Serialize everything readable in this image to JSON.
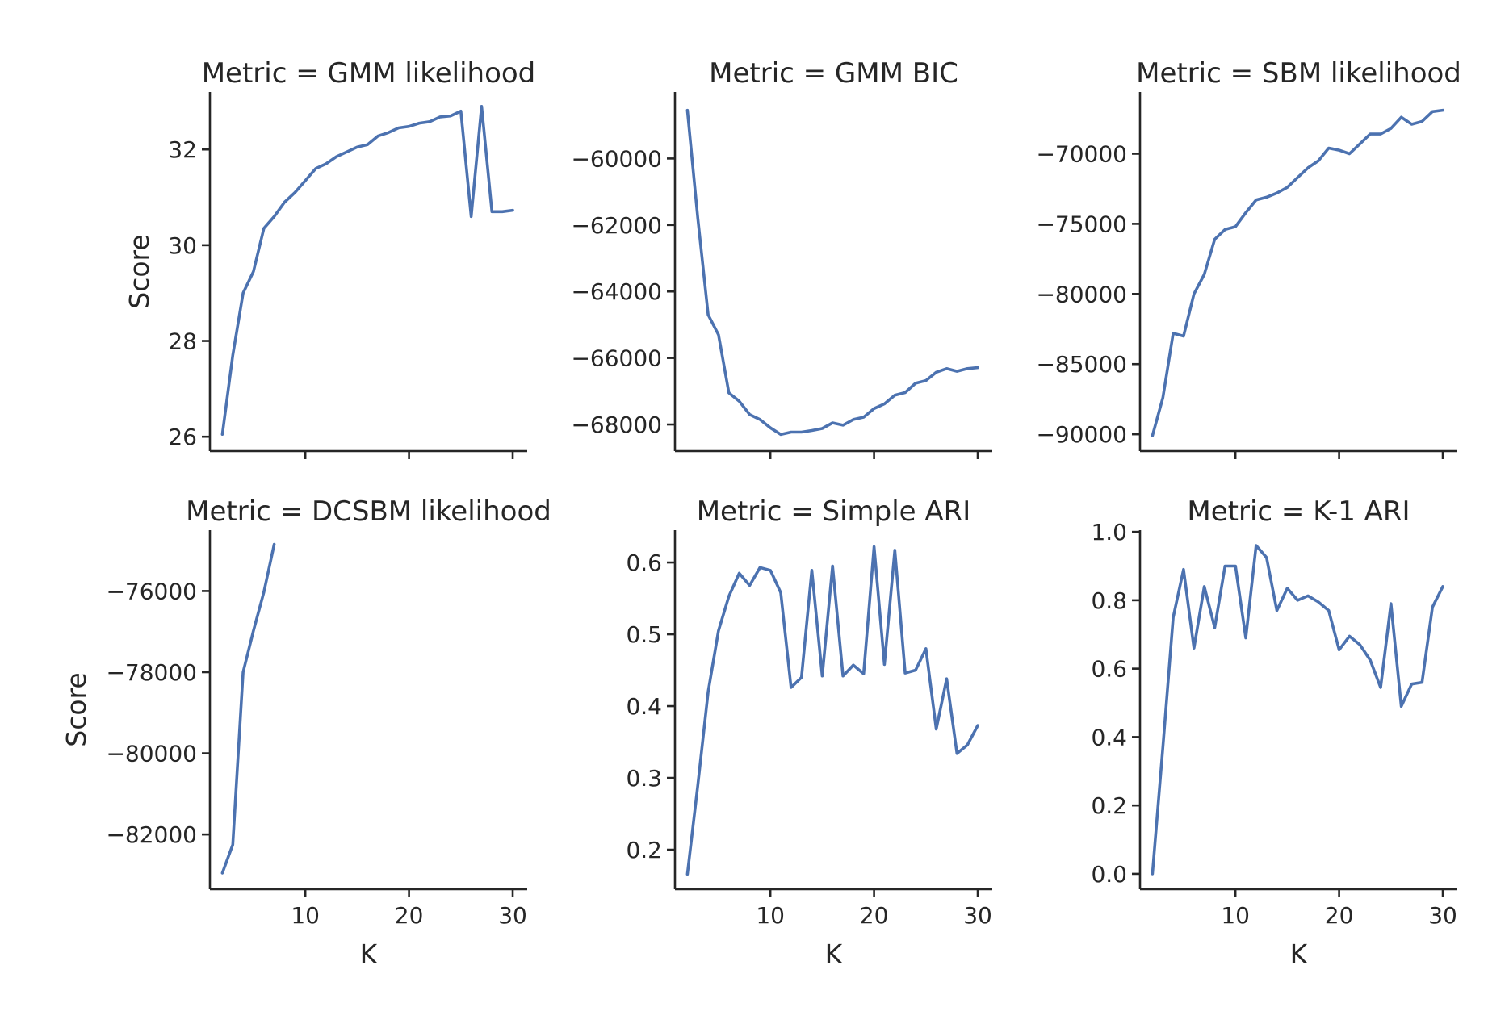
{
  "figure": {
    "line_color": "#4c72b0",
    "axis_color": "#262626"
  },
  "chart_data": [
    {
      "type": "line",
      "title": "Metric = GMM likelihood",
      "xlabel": "",
      "ylabel": "Score",
      "xlim": [
        0.8,
        31.4
      ],
      "ylim": [
        25.7,
        33.2
      ],
      "xticks": [
        10,
        20,
        30
      ],
      "xtick_labels": [],
      "yticks": [
        26,
        28,
        30,
        32
      ],
      "ytick_labels": [
        "26",
        "28",
        "30",
        "32"
      ],
      "grid": false,
      "x": [
        2,
        3,
        4,
        5,
        6,
        7,
        8,
        9,
        10,
        11,
        12,
        13,
        14,
        15,
        16,
        17,
        18,
        19,
        20,
        21,
        22,
        23,
        24,
        25,
        26,
        27,
        28,
        29,
        30
      ],
      "y": [
        26.05,
        27.7,
        29.0,
        29.45,
        30.35,
        30.6,
        30.9,
        31.1,
        31.35,
        31.6,
        31.7,
        31.85,
        31.95,
        32.05,
        32.1,
        32.28,
        32.35,
        32.45,
        32.48,
        32.55,
        32.58,
        32.68,
        32.7,
        32.8,
        30.6,
        32.9,
        30.7,
        30.7,
        30.73
      ]
    },
    {
      "type": "line",
      "title": "Metric = GMM BIC",
      "xlabel": "",
      "ylabel": "",
      "xlim": [
        0.8,
        31.4
      ],
      "ylim": [
        -68800,
        -58000
      ],
      "xticks": [
        10,
        20,
        30
      ],
      "xtick_labels": [],
      "yticks": [
        -68000,
        -66000,
        -64000,
        -62000,
        -60000
      ],
      "ytick_labels": [
        "−68000",
        "−66000",
        "−64000",
        "−62000",
        "−60000"
      ],
      "grid": false,
      "x": [
        2,
        3,
        4,
        5,
        6,
        7,
        8,
        9,
        10,
        11,
        12,
        13,
        14,
        15,
        16,
        17,
        18,
        19,
        20,
        21,
        22,
        23,
        24,
        25,
        26,
        27,
        28,
        29,
        30
      ],
      "y": [
        -58550,
        -61800,
        -64700,
        -65300,
        -67050,
        -67300,
        -67700,
        -67850,
        -68100,
        -68300,
        -68230,
        -68230,
        -68180,
        -68120,
        -67950,
        -68020,
        -67850,
        -67780,
        -67520,
        -67380,
        -67120,
        -67040,
        -66760,
        -66680,
        -66430,
        -66320,
        -66400,
        -66320,
        -66290
      ]
    },
    {
      "type": "line",
      "title": "Metric = SBM likelihood",
      "xlabel": "",
      "ylabel": "",
      "xlim": [
        0.8,
        31.4
      ],
      "ylim": [
        -91200,
        -65600
      ],
      "xticks": [
        10,
        20,
        30
      ],
      "xtick_labels": [],
      "yticks": [
        -90000,
        -85000,
        -80000,
        -75000,
        -70000
      ],
      "ytick_labels": [
        "−90000",
        "−85000",
        "−80000",
        "−75000",
        "−70000"
      ],
      "grid": false,
      "x": [
        2,
        3,
        4,
        5,
        6,
        7,
        8,
        9,
        10,
        11,
        12,
        13,
        14,
        15,
        16,
        17,
        18,
        19,
        20,
        21,
        22,
        23,
        24,
        25,
        26,
        27,
        28,
        29,
        30
      ],
      "y": [
        -90100,
        -87400,
        -82800,
        -83000,
        -80000,
        -78600,
        -76100,
        -75400,
        -75200,
        -74200,
        -73300,
        -73100,
        -72800,
        -72400,
        -71700,
        -71000,
        -70500,
        -69600,
        -69750,
        -70000,
        -69300,
        -68600,
        -68600,
        -68200,
        -67400,
        -67900,
        -67700,
        -67000,
        -66900
      ]
    },
    {
      "type": "line",
      "title": "Metric = DCSBM likelihood",
      "xlabel": "K",
      "ylabel": "Score",
      "xlim": [
        0.8,
        31.4
      ],
      "ylim": [
        -83350,
        -74500
      ],
      "xticks": [
        10,
        20,
        30
      ],
      "xtick_labels": [
        "10",
        "20",
        "30"
      ],
      "yticks": [
        -82000,
        -80000,
        -78000,
        -76000
      ],
      "ytick_labels": [
        "−82000",
        "−80000",
        "−78000",
        "−76000"
      ],
      "grid": false,
      "x": [
        2,
        3,
        4,
        5,
        6,
        7
      ],
      "y": [
        -82950,
        -82250,
        -78000,
        -76980,
        -76030,
        -74850
      ]
    },
    {
      "type": "line",
      "title": "Metric = Simple ARI",
      "xlabel": "K",
      "ylabel": "",
      "xlim": [
        0.8,
        31.4
      ],
      "ylim": [
        0.145,
        0.645
      ],
      "xticks": [
        10,
        20,
        30
      ],
      "xtick_labels": [
        "10",
        "20",
        "30"
      ],
      "yticks": [
        0.2,
        0.3,
        0.4,
        0.5,
        0.6
      ],
      "ytick_labels": [
        "0.2",
        "0.3",
        "0.4",
        "0.5",
        "0.6"
      ],
      "grid": false,
      "x": [
        2,
        3,
        4,
        5,
        6,
        7,
        8,
        9,
        10,
        11,
        12,
        13,
        14,
        15,
        16,
        17,
        18,
        19,
        20,
        21,
        22,
        23,
        24,
        25,
        26,
        27,
        28,
        29,
        30
      ],
      "y": [
        0.166,
        0.29,
        0.42,
        0.505,
        0.553,
        0.585,
        0.568,
        0.593,
        0.589,
        0.558,
        0.426,
        0.44,
        0.589,
        0.442,
        0.595,
        0.442,
        0.457,
        0.445,
        0.622,
        0.458,
        0.617,
        0.446,
        0.45,
        0.48,
        0.368,
        0.438,
        0.334,
        0.346,
        0.373
      ]
    },
    {
      "type": "line",
      "title": "Metric = K-1 ARI",
      "xlabel": "K",
      "ylabel": "",
      "xlim": [
        0.8,
        31.4
      ],
      "ylim": [
        -0.045,
        1.005
      ],
      "xticks": [
        10,
        20,
        30
      ],
      "xtick_labels": [
        "10",
        "20",
        "30"
      ],
      "yticks": [
        0.0,
        0.2,
        0.4,
        0.6,
        0.8,
        1.0
      ],
      "ytick_labels": [
        "0.0",
        "0.2",
        "0.4",
        "0.6",
        "0.8",
        "1.0"
      ],
      "grid": false,
      "x": [
        2,
        3,
        4,
        5,
        6,
        7,
        8,
        9,
        10,
        11,
        12,
        13,
        14,
        15,
        16,
        17,
        18,
        19,
        20,
        21,
        22,
        23,
        24,
        25,
        26,
        27,
        28,
        29,
        30
      ],
      "y": [
        0.0,
        0.37,
        0.75,
        0.89,
        0.66,
        0.84,
        0.72,
        0.9,
        0.9,
        0.69,
        0.96,
        0.925,
        0.77,
        0.835,
        0.8,
        0.813,
        0.795,
        0.77,
        0.655,
        0.695,
        0.67,
        0.625,
        0.545,
        0.79,
        0.49,
        0.555,
        0.56,
        0.78,
        0.84
      ]
    }
  ]
}
